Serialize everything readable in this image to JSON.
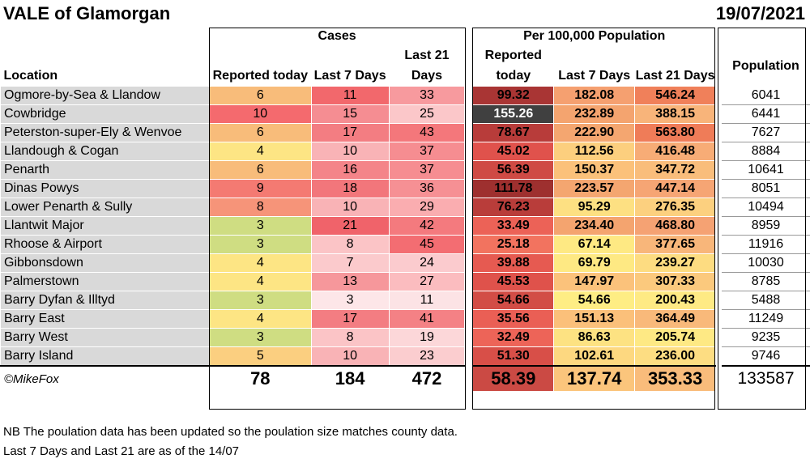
{
  "header": {
    "title": "VALE of Glamorgan",
    "date": "19/07/2021"
  },
  "table": {
    "group_cases": "Cases",
    "group_per100k": "Per 100,000 Population",
    "col_location": "Location",
    "col_reported": "Reported today",
    "col_last7": "Last 7 Days",
    "col_last21": "Last 21 Days",
    "col_population": "Population",
    "rows": [
      {
        "location": "Ogmore-by-Sea & Llandow",
        "reported": "6",
        "last7": "11",
        "last21": "33",
        "r100": "99.32",
        "l7_100": "182.08",
        "l21_100": "546.24",
        "population": "6041",
        "colors": [
          "#f8bc7a",
          "#f2686c",
          "#f79a9e",
          "#a93534",
          "#f5a070",
          "#f0805a"
        ]
      },
      {
        "location": "Cowbridge",
        "reported": "10",
        "last7": "15",
        "last21": "25",
        "r100": "155.26",
        "l7_100": "232.89",
        "l21_100": "388.15",
        "population": "6441",
        "colors": [
          "#f46a6e",
          "#f58d92",
          "#fbc7c9",
          "#404040",
          "#f4a46f",
          "#f8b47a"
        ]
      },
      {
        "location": "Peterston-super-Ely & Wenvoe",
        "reported": "6",
        "last7": "17",
        "last21": "43",
        "r100": "78.67",
        "l7_100": "222.90",
        "l21_100": "563.80",
        "population": "7627",
        "colors": [
          "#f8bc7a",
          "#f37d82",
          "#f4777b",
          "#b83c3a",
          "#f4a670",
          "#ef7c58"
        ]
      },
      {
        "location": "Llandough & Cogan",
        "reported": "4",
        "last7": "10",
        "last21": "37",
        "r100": "45.02",
        "l7_100": "112.56",
        "l21_100": "416.48",
        "population": "8884",
        "colors": [
          "#fde584",
          "#f9b3b6",
          "#f68d91",
          "#e0524c",
          "#fccf7e",
          "#f7ac76"
        ]
      },
      {
        "location": "Penarth",
        "reported": "6",
        "last7": "16",
        "last21": "37",
        "r100": "56.39",
        "l7_100": "150.37",
        "l21_100": "347.72",
        "population": "10641",
        "colors": [
          "#f8bc7a",
          "#f48489",
          "#f68d91",
          "#cf4a44",
          "#fbc17a",
          "#f9bd7b"
        ]
      },
      {
        "location": "Dinas Powys",
        "reported": "9",
        "last7": "18",
        "last21": "36",
        "r100": "111.78",
        "l7_100": "223.57",
        "l21_100": "447.14",
        "population": "8051",
        "colors": [
          "#f47a72",
          "#f2767b",
          "#f69094",
          "#9e302f",
          "#f4a670",
          "#f6a574"
        ]
      },
      {
        "location": "Lower Penarth & Sully",
        "reported": "8",
        "last7": "10",
        "last21": "29",
        "r100": "76.23",
        "l7_100": "95.29",
        "l21_100": "276.35",
        "population": "10494",
        "colors": [
          "#f69479",
          "#f9b3b6",
          "#faadb0",
          "#b93d3a",
          "#fde082",
          "#fcd07f"
        ]
      },
      {
        "location": "Llantwit Major",
        "reported": "3",
        "last7": "21",
        "last21": "42",
        "r100": "33.49",
        "l7_100": "234.40",
        "l21_100": "468.80",
        "population": "8959",
        "colors": [
          "#cfdd82",
          "#f0636a",
          "#f47a7e",
          "#ec6257",
          "#f4a46f",
          "#f5a273"
        ]
      },
      {
        "location": "Rhoose & Airport",
        "reported": "3",
        "last7": "8",
        "last21": "45",
        "r100": "25.18",
        "l7_100": "67.14",
        "l21_100": "377.65",
        "population": "11916",
        "colors": [
          "#cfdd82",
          "#fbc4c6",
          "#f36d72",
          "#f2735f",
          "#fee983",
          "#f8b67a"
        ]
      },
      {
        "location": "Gibbonsdown",
        "reported": "4",
        "last7": "7",
        "last21": "24",
        "r100": "39.88",
        "l7_100": "69.79",
        "l21_100": "239.27",
        "population": "10030",
        "colors": [
          "#fde584",
          "#fbcacc",
          "#fbcbce",
          "#e65a51",
          "#fee983",
          "#fddc81"
        ]
      },
      {
        "location": "Palmerstown",
        "reported": "4",
        "last7": "13",
        "last21": "27",
        "r100": "45.53",
        "l7_100": "147.97",
        "l21_100": "307.33",
        "population": "8785",
        "colors": [
          "#fde584",
          "#f6979b",
          "#fbbcbf",
          "#df524b",
          "#fbc27b",
          "#fbc97d"
        ]
      },
      {
        "location": "Barry Dyfan & Illtyd",
        "reported": "3",
        "last7": "3",
        "last21": "11",
        "r100": "54.66",
        "l7_100": "54.66",
        "l21_100": "200.43",
        "population": "5488",
        "colors": [
          "#cfdd82",
          "#fde6e8",
          "#fce3e5",
          "#d24d46",
          "#feed84",
          "#feea84"
        ]
      },
      {
        "location": "Barry East",
        "reported": "4",
        "last7": "17",
        "last21": "41",
        "r100": "35.56",
        "l7_100": "151.13",
        "l21_100": "364.49",
        "population": "11249",
        "colors": [
          "#fde584",
          "#f37d82",
          "#f48185",
          "#ea5f55",
          "#fbc07a",
          "#f9b97a"
        ]
      },
      {
        "location": "Barry West",
        "reported": "3",
        "last7": "8",
        "last21": "19",
        "r100": "32.49",
        "l7_100": "86.63",
        "l21_100": "205.74",
        "population": "9235",
        "colors": [
          "#cfdd82",
          "#fbc4c6",
          "#fcd7d9",
          "#ed6458",
          "#fde282",
          "#fee984"
        ]
      },
      {
        "location": "Barry Island",
        "reported": "5",
        "last7": "10",
        "last21": "23",
        "r100": "51.30",
        "l7_100": "102.61",
        "l21_100": "236.00",
        "population": "9746",
        "colors": [
          "#fbcf80",
          "#f9b3b6",
          "#fbcdcf",
          "#d84f48",
          "#fdd880",
          "#fddd82"
        ]
      }
    ],
    "totals": {
      "credit": "©MikeFox",
      "reported": "78",
      "last7": "184",
      "last21": "472",
      "r100": "58.39",
      "l7_100": "137.74",
      "l21_100": "353.33",
      "population": "133587",
      "colors": [
        "#cb4a44",
        "#fbc57c",
        "#f9bc7b"
      ]
    }
  },
  "notes": {
    "line1": "NB The poulation data has been updated so the poulation size matches county data.",
    "line2": "Last 7 Days and Last 21 are as of the 14/07"
  }
}
